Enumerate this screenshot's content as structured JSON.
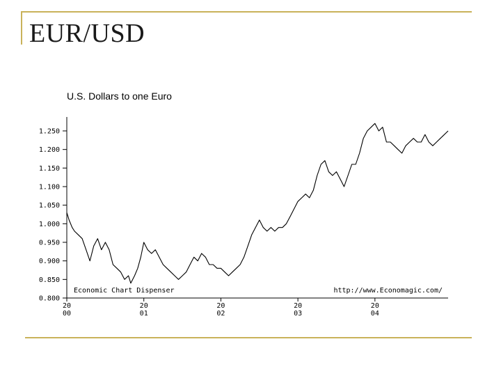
{
  "slide": {
    "title": "EUR/USD"
  },
  "chart_data": {
    "type": "line",
    "title": "U.S. Dollars to one Euro",
    "source_left": "Economic Chart Dispenser",
    "source_right": "http://www.Economagic.com/",
    "xlabel": "",
    "ylabel": "",
    "ylim": [
      0.8,
      1.25
    ],
    "xlim": [
      2000.0,
      2004.95
    ],
    "y_ticks": [
      "1.250",
      "1.200",
      "1.150",
      "1.100",
      "1.050",
      "1.000",
      "0.950",
      "0.900",
      "0.850",
      "0.800"
    ],
    "x_ticks": [
      {
        "year": 2000,
        "top": "20",
        "bottom": "00"
      },
      {
        "year": 2001,
        "top": "20",
        "bottom": "01"
      },
      {
        "year": 2002,
        "top": "20",
        "bottom": "02"
      },
      {
        "year": 2003,
        "top": "20",
        "bottom": "03"
      },
      {
        "year": 2004,
        "top": "20",
        "bottom": "04"
      }
    ],
    "series": [
      {
        "x": [
          2000.0,
          2000.03,
          2000.07,
          2000.1,
          2000.15,
          2000.2,
          2000.25,
          2000.3,
          2000.35,
          2000.4,
          2000.45,
          2000.5,
          2000.55,
          2000.6,
          2000.65,
          2000.7,
          2000.75,
          2000.8,
          2000.83,
          2000.88,
          2000.92,
          2000.96,
          2001.0,
          2001.05,
          2001.1,
          2001.15,
          2001.2,
          2001.25,
          2001.3,
          2001.35,
          2001.4,
          2001.45,
          2001.5,
          2001.55,
          2001.6,
          2001.65,
          2001.7,
          2001.75,
          2001.8,
          2001.85,
          2001.9,
          2001.95,
          2002.0,
          2002.05,
          2002.1,
          2002.15,
          2002.2,
          2002.25,
          2002.3,
          2002.35,
          2002.4,
          2002.45,
          2002.5,
          2002.55,
          2002.6,
          2002.65,
          2002.7,
          2002.75,
          2002.8,
          2002.85,
          2002.9,
          2002.95,
          2003.0,
          2003.05,
          2003.1,
          2003.15,
          2003.2,
          2003.25,
          2003.3,
          2003.35,
          2003.4,
          2003.45,
          2003.5,
          2003.55,
          2003.6,
          2003.65,
          2003.7,
          2003.75,
          2003.8,
          2003.85,
          2003.9,
          2003.95,
          2004.0,
          2004.05,
          2004.1,
          2004.15,
          2004.2,
          2004.25,
          2004.3,
          2004.35,
          2004.4,
          2004.45,
          2004.5,
          2004.55,
          2004.6,
          2004.65,
          2004.7,
          2004.75,
          2004.8,
          2004.85,
          2004.9,
          2004.95
        ],
        "values": [
          1.03,
          1.01,
          0.99,
          0.98,
          0.97,
          0.96,
          0.93,
          0.9,
          0.94,
          0.96,
          0.93,
          0.95,
          0.93,
          0.89,
          0.88,
          0.87,
          0.85,
          0.86,
          0.84,
          0.86,
          0.88,
          0.91,
          0.95,
          0.93,
          0.92,
          0.93,
          0.91,
          0.89,
          0.88,
          0.87,
          0.86,
          0.85,
          0.86,
          0.87,
          0.89,
          0.91,
          0.9,
          0.92,
          0.91,
          0.89,
          0.89,
          0.88,
          0.88,
          0.87,
          0.86,
          0.87,
          0.88,
          0.89,
          0.91,
          0.94,
          0.97,
          0.99,
          1.01,
          0.99,
          0.98,
          0.99,
          0.98,
          0.99,
          0.99,
          1.0,
          1.02,
          1.04,
          1.06,
          1.07,
          1.08,
          1.07,
          1.09,
          1.13,
          1.16,
          1.17,
          1.14,
          1.13,
          1.14,
          1.12,
          1.1,
          1.13,
          1.16,
          1.16,
          1.19,
          1.23,
          1.25,
          1.26,
          1.27,
          1.25,
          1.26,
          1.22,
          1.22,
          1.21,
          1.2,
          1.19,
          1.21,
          1.22,
          1.23,
          1.22,
          1.22,
          1.24,
          1.22,
          1.21,
          1.22,
          1.23,
          1.24,
          1.25
        ]
      }
    ],
    "grid": false,
    "legend": "none"
  }
}
